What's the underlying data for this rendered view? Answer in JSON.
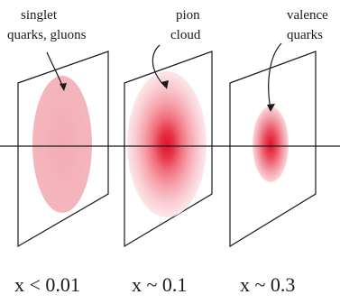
{
  "panels": [
    {
      "annotation_lines": [
        "singlet",
        "quarks, gluons"
      ],
      "x_label": "x < 0.01"
    },
    {
      "annotation_lines": [
        "pion",
        "cloud"
      ],
      "x_label": "x ~ 0.1"
    },
    {
      "annotation_lines": [
        "valence",
        "quarks"
      ],
      "x_label": "x ~ 0.3"
    }
  ],
  "colors": {
    "line": "#1a1a1a",
    "pink_light": "#f7c9cf",
    "pink_mid": "#ef8f99",
    "pink_dark": "#e65565",
    "red_core": "#d81f33"
  }
}
